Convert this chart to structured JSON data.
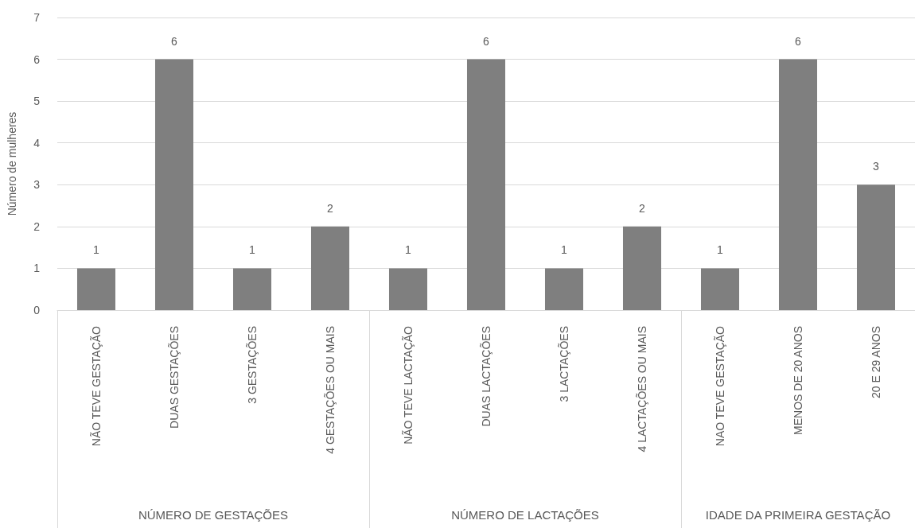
{
  "chart_data": [
    {
      "type": "bar",
      "xlabel": "NÚMERO DE GESTAÇÕES",
      "ylabel": "Número de mulheres",
      "categories": [
        "NÃO TEVE GESTAÇÃO",
        "DUAS GESTAÇÕES",
        "3 GESTAÇÕES",
        "4 GESTAÇÕES OU MAIS"
      ],
      "values": [
        1,
        6,
        1,
        2
      ],
      "color": "#7f7f7f",
      "ylim": [
        0,
        7
      ],
      "yticks": [
        0,
        1,
        2,
        3,
        4,
        5,
        6,
        7
      ],
      "grid": "y",
      "data_labels": true
    },
    {
      "type": "bar",
      "xlabel": "NÚMERO DE LACTAÇÕES",
      "categories": [
        "NÃO TEVE LACTAÇÃO",
        "DUAS LACTAÇÕES",
        "3 LACTAÇÕES",
        "4 LACTAÇÕES OU MAIS"
      ],
      "values": [
        1,
        6,
        1,
        2
      ],
      "color": "#7f7f7f",
      "ylim": [
        0,
        7
      ],
      "yticks": [
        0,
        1,
        2,
        3,
        4,
        5,
        6,
        7
      ],
      "grid": "y",
      "data_labels": true,
      "tick_labels": "x"
    },
    {
      "type": "bar",
      "xlabel": "IDADE DA PRIMEIRA GESTAÇÃO",
      "categories": [
        "NAO TEVE GESTAÇÃO",
        "MENOS DE 20 ANOS",
        "20 E 29 ANOS"
      ],
      "values": [
        1,
        6,
        3
      ],
      "color": "#7f7f7f",
      "ylim": [
        0,
        7
      ],
      "yticks": [
        0,
        1,
        2,
        3,
        4,
        5,
        6,
        7
      ],
      "grid": "y",
      "data_labels": true,
      "tick_labels": "x"
    }
  ]
}
